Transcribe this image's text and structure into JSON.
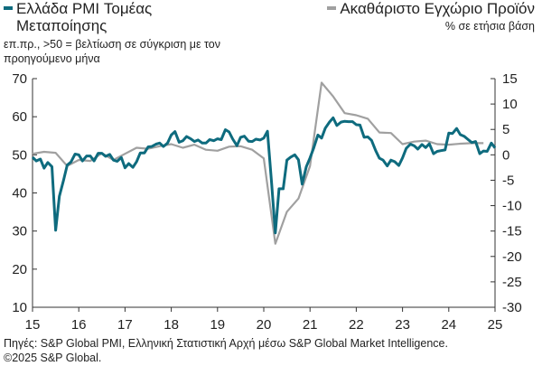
{
  "legend": {
    "left_line1": "Ελλάδα PMI Τομέας",
    "left_line2": "Μεταποίησης",
    "left_sub_line1": "επ.πρ., >50 = βελτίωση σε σύγκριση με τον",
    "left_sub_line2": "προηγούμενο μήνα",
    "right_title": "Ακαθάριστο Εγχώριο Προϊόν",
    "right_sub": "% σε ετήσια βάση"
  },
  "colors": {
    "pmi": "#0e6b7e",
    "gdp": "#a0a0a0",
    "axis": "#333333"
  },
  "footer": {
    "line1": "Πηγές: S&P Global PMI, Ελληνική Στατιστική Αρχή μέσω S&P Global Market Intelligence.",
    "line2": "©2025 S&P Global."
  },
  "chart_data": {
    "type": "line",
    "x_ticks": [
      "15",
      "16",
      "17",
      "18",
      "19",
      "20",
      "21",
      "22",
      "23",
      "24",
      "25"
    ],
    "y_left": {
      "min": 10,
      "max": 70,
      "ticks": [
        "10",
        "20",
        "30",
        "40",
        "50",
        "60",
        "70"
      ]
    },
    "y_right": {
      "min": -30,
      "max": 15,
      "ticks": [
        "-30",
        "-25",
        "-20",
        "-15",
        "-10",
        "-5",
        "0",
        "5",
        "10",
        "15"
      ]
    },
    "series": [
      {
        "name": "Ελλάδα PMI Τομέας Μεταποίησης",
        "axis": "left",
        "points": [
          [
            2015.0,
            49.4
          ],
          [
            2015.08,
            48.4
          ],
          [
            2015.17,
            48.9
          ],
          [
            2015.25,
            46.5
          ],
          [
            2015.33,
            48.0
          ],
          [
            2015.42,
            46.9
          ],
          [
            2015.5,
            30.2
          ],
          [
            2015.58,
            39.1
          ],
          [
            2015.67,
            43.3
          ],
          [
            2015.75,
            47.3
          ],
          [
            2015.83,
            48.1
          ],
          [
            2015.92,
            50.2
          ],
          [
            2016.0,
            50.0
          ],
          [
            2016.08,
            48.4
          ],
          [
            2016.17,
            49.7
          ],
          [
            2016.25,
            49.7
          ],
          [
            2016.33,
            48.4
          ],
          [
            2016.42,
            50.4
          ],
          [
            2016.5,
            50.4
          ],
          [
            2016.58,
            49.6
          ],
          [
            2016.67,
            50.1
          ],
          [
            2016.75,
            48.6
          ],
          [
            2016.83,
            48.3
          ],
          [
            2016.92,
            49.3
          ],
          [
            2017.0,
            46.6
          ],
          [
            2017.08,
            47.7
          ],
          [
            2017.17,
            46.7
          ],
          [
            2017.25,
            48.2
          ],
          [
            2017.33,
            50.5
          ],
          [
            2017.42,
            50.5
          ],
          [
            2017.5,
            52.1
          ],
          [
            2017.58,
            52.2
          ],
          [
            2017.67,
            52.8
          ],
          [
            2017.75,
            53.1
          ],
          [
            2017.83,
            52.2
          ],
          [
            2017.92,
            53.1
          ],
          [
            2018.0,
            55.2
          ],
          [
            2018.08,
            56.1
          ],
          [
            2018.17,
            53.3
          ],
          [
            2018.25,
            53.7
          ],
          [
            2018.33,
            54.8
          ],
          [
            2018.42,
            54.2
          ],
          [
            2018.5,
            53.5
          ],
          [
            2018.58,
            53.9
          ],
          [
            2018.67,
            53.1
          ],
          [
            2018.75,
            53.1
          ],
          [
            2018.83,
            54.0
          ],
          [
            2018.92,
            53.7
          ],
          [
            2019.0,
            54.2
          ],
          [
            2019.08,
            54.0
          ],
          [
            2019.17,
            56.6
          ],
          [
            2019.25,
            56.0
          ],
          [
            2019.33,
            54.1
          ],
          [
            2019.42,
            52.4
          ],
          [
            2019.5,
            54.6
          ],
          [
            2019.58,
            54.9
          ],
          [
            2019.67,
            53.6
          ],
          [
            2019.75,
            53.5
          ],
          [
            2019.83,
            54.1
          ],
          [
            2019.92,
            53.9
          ],
          [
            2020.0,
            54.4
          ],
          [
            2020.08,
            56.2
          ],
          [
            2020.17,
            42.5
          ],
          [
            2020.25,
            29.5
          ],
          [
            2020.33,
            41.1
          ],
          [
            2020.42,
            41.1
          ],
          [
            2020.5,
            48.6
          ],
          [
            2020.58,
            49.4
          ],
          [
            2020.67,
            50.0
          ],
          [
            2020.75,
            48.7
          ],
          [
            2020.83,
            42.3
          ],
          [
            2020.92,
            46.9
          ],
          [
            2021.0,
            49.2
          ],
          [
            2021.08,
            51.8
          ],
          [
            2021.17,
            55.2
          ],
          [
            2021.25,
            54.4
          ],
          [
            2021.33,
            57.0
          ],
          [
            2021.42,
            58.6
          ],
          [
            2021.5,
            59.7
          ],
          [
            2021.58,
            57.7
          ],
          [
            2021.67,
            58.6
          ],
          [
            2021.75,
            58.8
          ],
          [
            2021.83,
            58.7
          ],
          [
            2021.92,
            58.7
          ],
          [
            2022.0,
            57.9
          ],
          [
            2022.08,
            57.8
          ],
          [
            2022.17,
            54.6
          ],
          [
            2022.25,
            54.7
          ],
          [
            2022.33,
            53.8
          ],
          [
            2022.42,
            51.1
          ],
          [
            2022.5,
            49.1
          ],
          [
            2022.58,
            48.6
          ],
          [
            2022.67,
            47.1
          ],
          [
            2022.75,
            48.6
          ],
          [
            2022.83,
            48.2
          ],
          [
            2022.92,
            47.2
          ],
          [
            2023.0,
            49.2
          ],
          [
            2023.08,
            51.7
          ],
          [
            2023.17,
            52.8
          ],
          [
            2023.25,
            52.4
          ],
          [
            2023.33,
            51.5
          ],
          [
            2023.42,
            52.7
          ],
          [
            2023.5,
            51.9
          ],
          [
            2023.58,
            52.9
          ],
          [
            2023.67,
            50.3
          ],
          [
            2023.75,
            50.9
          ],
          [
            2023.83,
            51.1
          ],
          [
            2023.92,
            51.3
          ],
          [
            2024.0,
            55.7
          ],
          [
            2024.08,
            55.6
          ],
          [
            2024.17,
            56.9
          ],
          [
            2024.25,
            55.3
          ],
          [
            2024.33,
            54.9
          ],
          [
            2024.42,
            54.0
          ],
          [
            2024.5,
            53.2
          ],
          [
            2024.58,
            53.5
          ],
          [
            2024.67,
            50.3
          ],
          [
            2024.75,
            51.0
          ],
          [
            2024.83,
            50.9
          ],
          [
            2024.92,
            53.1
          ],
          [
            2025.0,
            51.8
          ]
        ]
      },
      {
        "name": "Ακαθάριστο Εγχώριο Προϊόν",
        "axis": "right",
        "points": [
          [
            2015.0,
            0.2
          ],
          [
            2015.25,
            0.6
          ],
          [
            2015.5,
            0.4
          ],
          [
            2015.75,
            -2.2
          ],
          [
            2016.0,
            -1.0
          ],
          [
            2016.25,
            -1.2
          ],
          [
            2016.5,
            0.3
          ],
          [
            2016.75,
            -1.0
          ],
          [
            2017.0,
            0.2
          ],
          [
            2017.25,
            1.4
          ],
          [
            2017.5,
            1.2
          ],
          [
            2017.75,
            1.7
          ],
          [
            2018.0,
            2.1
          ],
          [
            2018.25,
            1.4
          ],
          [
            2018.5,
            2.0
          ],
          [
            2018.75,
            1.0
          ],
          [
            2019.0,
            0.8
          ],
          [
            2019.25,
            1.6
          ],
          [
            2019.5,
            1.7
          ],
          [
            2019.75,
            1.0
          ],
          [
            2020.0,
            -0.7
          ],
          [
            2020.25,
            -17.5
          ],
          [
            2020.5,
            -11.2
          ],
          [
            2020.75,
            -8.6
          ],
          [
            2021.0,
            -2.2
          ],
          [
            2021.25,
            14.2
          ],
          [
            2021.5,
            11.5
          ],
          [
            2021.75,
            8.2
          ],
          [
            2022.0,
            7.8
          ],
          [
            2022.25,
            7.1
          ],
          [
            2022.5,
            4.4
          ],
          [
            2022.75,
            4.3
          ],
          [
            2023.0,
            2.1
          ],
          [
            2023.25,
            2.6
          ],
          [
            2023.5,
            2.8
          ],
          [
            2023.75,
            2.1
          ],
          [
            2024.0,
            2.0
          ],
          [
            2024.25,
            2.2
          ],
          [
            2024.5,
            2.3
          ],
          [
            2024.75,
            2.3
          ]
        ]
      }
    ]
  }
}
